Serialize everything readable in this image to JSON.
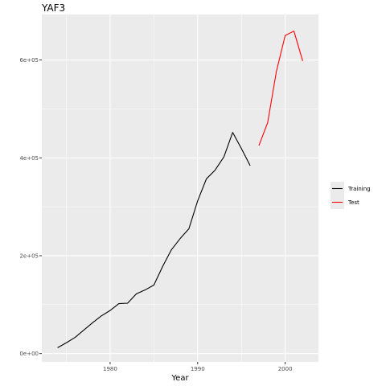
{
  "chart_data": {
    "type": "line",
    "title": "YAF3",
    "xlabel": "Year",
    "ylabel": "",
    "xlim": [
      1972.2,
      2003.8
    ],
    "ylim": [
      -17000,
      693000
    ],
    "x_ticks": [
      1980,
      1990,
      2000
    ],
    "x_tick_labels": [
      "1980",
      "1990",
      "2000"
    ],
    "y_ticks": [
      0,
      200000,
      400000,
      600000
    ],
    "y_tick_labels": [
      "0e+00",
      "2e+05",
      "4e+05",
      "6e+05"
    ],
    "grid": true,
    "legend_position": "right",
    "series": [
      {
        "name": "Training",
        "color": "#000000",
        "x": [
          1974,
          1975,
          1976,
          1977,
          1978,
          1979,
          1980,
          1981,
          1982,
          1983,
          1984,
          1985,
          1986,
          1987,
          1988,
          1989,
          1990,
          1991,
          1992,
          1993,
          1994,
          1995,
          1996
        ],
        "y": [
          12000,
          22000,
          33000,
          48000,
          63000,
          77000,
          88000,
          102000,
          103000,
          122000,
          130000,
          140000,
          178000,
          212000,
          235000,
          255000,
          312000,
          357000,
          375000,
          402000,
          452000,
          419000,
          384000
        ]
      },
      {
        "name": "Test",
        "color": "#ff0000",
        "x": [
          1997,
          1998,
          1999,
          2000,
          2001,
          2002
        ],
        "y": [
          425000,
          472000,
          577000,
          650000,
          659000,
          598000
        ]
      }
    ]
  }
}
